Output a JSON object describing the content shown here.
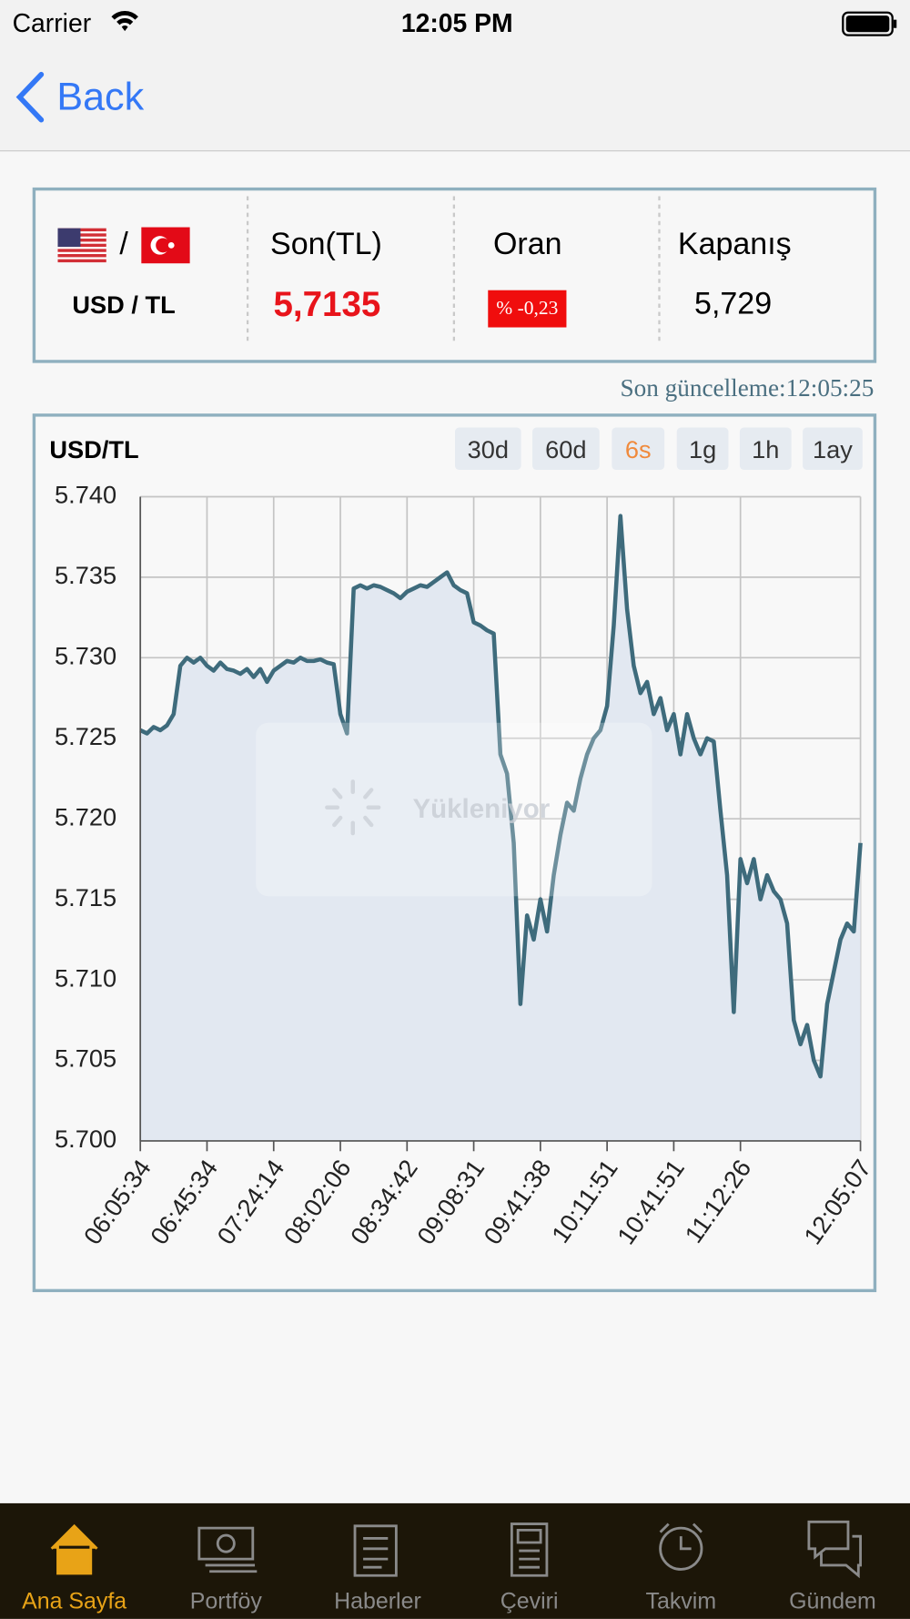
{
  "status_bar": {
    "carrier": "Carrier",
    "time": "12:05 PM"
  },
  "nav": {
    "back": "Back"
  },
  "quote": {
    "slash": "/",
    "pair": "USD / TL",
    "last_label": "Son(TL)",
    "last_value": "5,7135",
    "rate_label": "Oran",
    "rate_value": "% -0,23",
    "close_label": "Kapanış",
    "close_value": "5,729"
  },
  "last_update": "Son güncelleme:12:05:25",
  "loading": "Yükleniyor",
  "chart_data": {
    "type": "area",
    "title": "USD/TL",
    "ranges": [
      "30d",
      "60d",
      "6s",
      "1g",
      "1h",
      "1ay"
    ],
    "active_range": "6s",
    "categories": [
      "06:05:34",
      null,
      null,
      null,
      null,
      null,
      null,
      null,
      null,
      null,
      "06:45:34",
      null,
      null,
      null,
      null,
      null,
      null,
      null,
      null,
      null,
      "07:24:14",
      null,
      null,
      null,
      null,
      null,
      null,
      null,
      null,
      null,
      "08:02:06",
      null,
      null,
      null,
      null,
      null,
      null,
      null,
      null,
      null,
      "08:34:42",
      null,
      null,
      null,
      null,
      null,
      null,
      null,
      null,
      null,
      "09:08:31",
      null,
      null,
      null,
      null,
      null,
      null,
      null,
      null,
      null,
      "09:41:38",
      null,
      null,
      null,
      null,
      null,
      null,
      null,
      null,
      null,
      "10:11:51",
      null,
      null,
      null,
      null,
      null,
      null,
      null,
      null,
      null,
      "10:41:51",
      null,
      null,
      null,
      null,
      null,
      null,
      null,
      null,
      null,
      "11:12:26",
      null,
      null,
      null,
      null,
      null,
      null,
      null,
      null,
      null,
      null,
      null,
      null,
      null,
      null,
      null,
      null,
      null,
      "12:05:07"
    ],
    "color": "#3e6b7c",
    "fill": "#e2e8f1",
    "values": [
      5.7255,
      5.7253,
      5.7257,
      5.7255,
      5.7258,
      5.7265,
      5.7295,
      5.73,
      5.7297,
      5.73,
      5.7295,
      5.7292,
      5.7297,
      5.7293,
      5.7292,
      5.729,
      5.7293,
      5.7288,
      5.7293,
      5.7285,
      5.7292,
      5.7295,
      5.7298,
      5.7297,
      5.73,
      5.7298,
      5.7298,
      5.7299,
      5.7297,
      5.7296,
      5.7265,
      5.7253,
      5.7343,
      5.7345,
      5.7343,
      5.7345,
      5.7344,
      5.7342,
      5.734,
      5.7337,
      5.7341,
      5.7343,
      5.7345,
      5.7344,
      5.7347,
      5.735,
      5.7353,
      5.7345,
      5.7342,
      5.734,
      5.7322,
      5.732,
      5.7317,
      5.7315,
      5.724,
      5.7228,
      5.7185,
      5.7085,
      5.714,
      5.7125,
      5.715,
      5.713,
      5.7165,
      5.719,
      5.721,
      5.7205,
      5.7225,
      5.724,
      5.725,
      5.7255,
      5.727,
      5.732,
      5.7388,
      5.733,
      5.7295,
      5.7278,
      5.7285,
      5.7265,
      5.7275,
      5.7255,
      5.7265,
      5.724,
      5.7265,
      5.725,
      5.724,
      5.725,
      5.7248,
      5.7205,
      5.7165,
      5.708,
      5.7175,
      5.716,
      5.7175,
      5.715,
      5.7165,
      5.7155,
      5.715,
      5.7135,
      5.7075,
      5.706,
      5.7072,
      5.705,
      5.704,
      5.7085,
      5.7105,
      5.7125,
      5.7135,
      5.713,
      5.7185
    ],
    "ylim": [
      5.7,
      5.74
    ],
    "yticks": [
      {
        "value": 5.7,
        "label": "5.700"
      },
      5.705,
      {
        "value": 5.71,
        "label": "5.710"
      },
      5.715,
      {
        "value": 5.72,
        "label": "5.720"
      },
      5.725,
      {
        "value": 5.73,
        "label": "5.730"
      },
      5.735,
      {
        "value": 5.74,
        "label": "5.740"
      }
    ],
    "grid": true
  },
  "tabs": [
    "Ana Sayfa",
    "Portföy",
    "Haberler",
    "Çeviri",
    "Takvim",
    "Gündem"
  ]
}
